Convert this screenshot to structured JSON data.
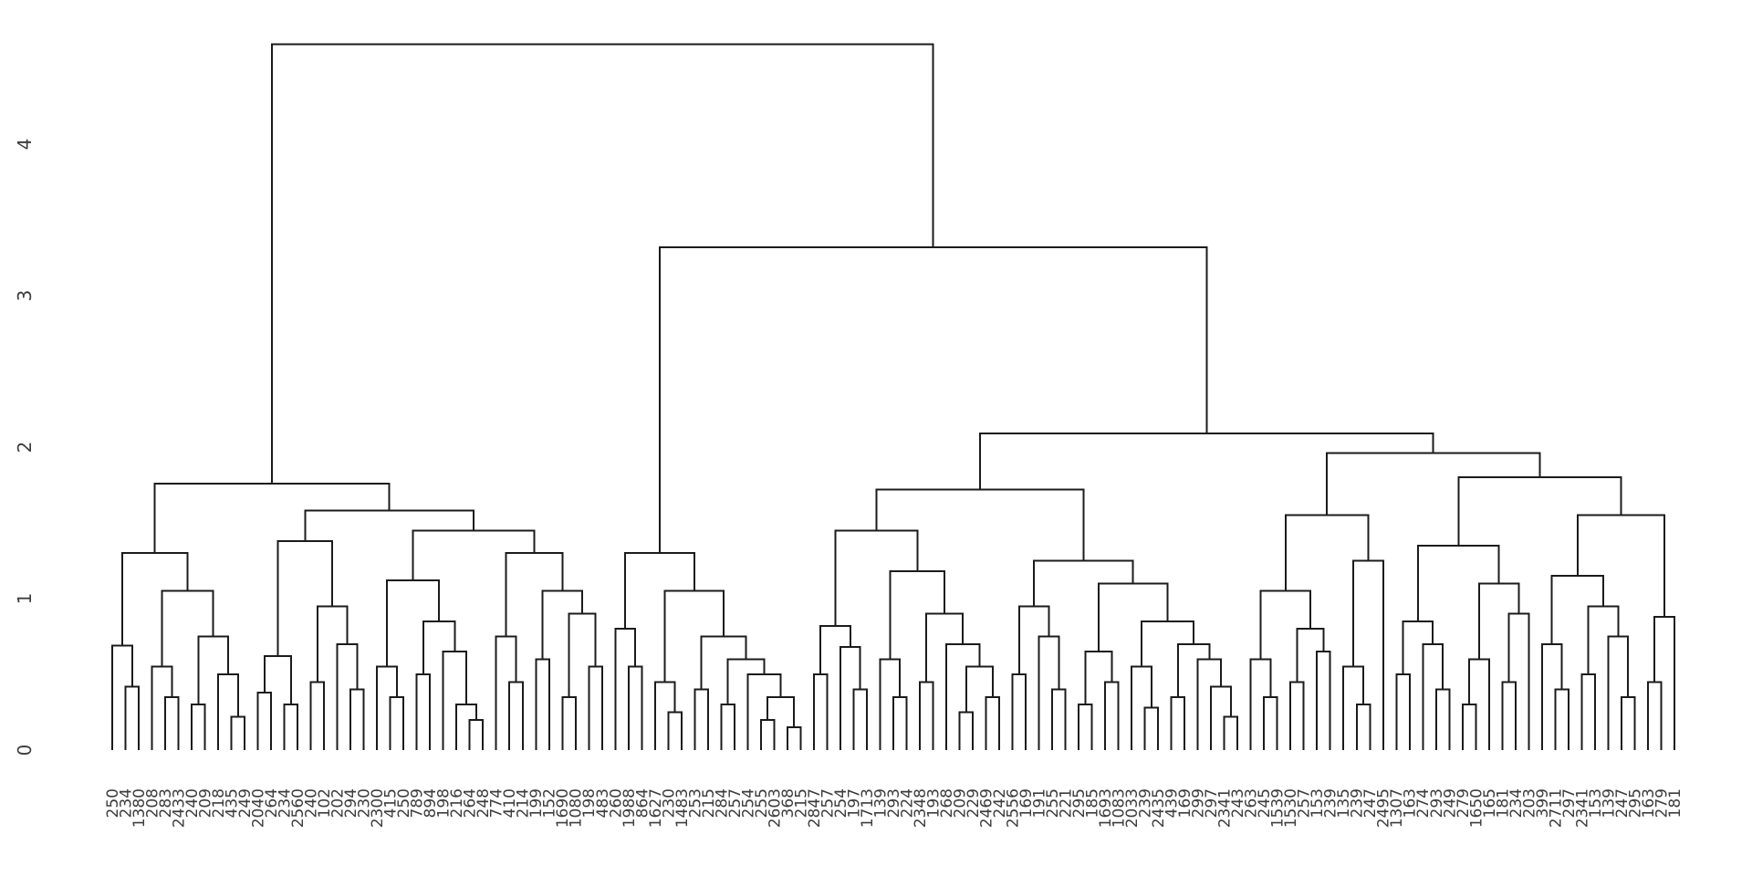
{
  "chart_data": {
    "type": "dendrogram",
    "title": "",
    "xlabel": "",
    "ylabel": "",
    "orientation": "top",
    "grid": false,
    "legend": false,
    "yticks": [
      "0",
      "1",
      "2",
      "3",
      "4"
    ],
    "ylim": [
      0,
      4.85
    ],
    "root_height": 4.66,
    "colors": {
      "line": "#1b1b1b",
      "label": "#3d3d3d",
      "background": "#ffffff"
    },
    "leaf_labels": [
      "250",
      "234",
      "1380",
      "208",
      "283",
      "2433",
      "240",
      "209",
      "218",
      "435",
      "249",
      "2040",
      "264",
      "234",
      "2560",
      "240",
      "102",
      "202",
      "294",
      "230",
      "2300",
      "415",
      "250",
      "789",
      "894",
      "198",
      "216",
      "264",
      "248",
      "774",
      "410",
      "214",
      "199",
      "152",
      "1690",
      "1080",
      "198",
      "483",
      "260",
      "1988",
      "864",
      "1627",
      "230",
      "1483",
      "253",
      "215",
      "284",
      "257",
      "254",
      "255",
      "2603",
      "368",
      "215",
      "2847",
      "257",
      "254",
      "197",
      "1713",
      "139",
      "293",
      "224",
      "2348",
      "193",
      "268",
      "209",
      "229",
      "2469",
      "242",
      "2556",
      "169",
      "191",
      "255",
      "221",
      "295",
      "185",
      "1693",
      "1083",
      "2033",
      "239",
      "2435",
      "439",
      "169",
      "299",
      "297",
      "2341",
      "243",
      "263",
      "245",
      "1539",
      "1530",
      "257",
      "153",
      "239",
      "135",
      "239",
      "247",
      "2495",
      "1307",
      "163",
      "274",
      "293",
      "249",
      "279",
      "1650",
      "165",
      "181",
      "234",
      "203",
      "399",
      "2711",
      "297",
      "2341",
      "153",
      "139",
      "247",
      "295",
      "163",
      "279",
      "181"
    ],
    "tree": [
      4.66,
      [
        1.76,
        [
          1.3,
          [
            0.69,
            0,
            [
              0.42,
              1,
              2
            ]
          ],
          [
            1.05,
            [
              0.55,
              3,
              [
                0.35,
                4,
                5
              ]
            ],
            [
              0.75,
              [
                0.3,
                6,
                7
              ],
              [
                0.5,
                8,
                [
                  0.22,
                  9,
                  10
                ]
              ]
            ]
          ]
        ],
        [
          1.58,
          [
            1.38,
            [
              0.62,
              [
                0.38,
                11,
                12
              ],
              [
                0.3,
                13,
                14
              ]
            ],
            [
              0.95,
              [
                0.45,
                15,
                16
              ],
              [
                0.7,
                17,
                [
                  0.4,
                  18,
                  19
                ]
              ]
            ]
          ],
          [
            1.45,
            [
              1.12,
              [
                0.55,
                20,
                [
                  0.35,
                  21,
                  22
                ]
              ],
              [
                0.85,
                [
                  0.5,
                  23,
                  24
                ],
                [
                  0.65,
                  25,
                  [
                    0.3,
                    26,
                    [
                      0.2,
                      27,
                      28
                    ]
                  ]
                ]
              ]
            ],
            [
              1.3,
              [
                0.75,
                29,
                [
                  0.45,
                  30,
                  31
                ]
              ],
              [
                1.05,
                [
                  0.6,
                  32,
                  33
                ],
                [
                  0.9,
                  [
                    0.35,
                    34,
                    35
                  ],
                  [
                    0.55,
                    36,
                    37
                  ]
                ]
              ]
            ]
          ]
        ]
      ],
      [
        3.32,
        [
          1.3,
          [
            0.8,
            38,
            [
              0.55,
              39,
              40
            ]
          ],
          [
            1.05,
            [
              0.45,
              41,
              [
                0.25,
                42,
                43
              ]
            ],
            [
              0.75,
              [
                0.4,
                44,
                45
              ],
              [
                0.6,
                [
                  0.3,
                  46,
                  47
                ],
                [
                  0.5,
                  48,
                  [
                    0.35,
                    [
                      0.2,
                      49,
                      50
                    ],
                    [
                      0.15,
                      51,
                      52
                    ]
                  ]
                ]
              ]
            ]
          ]
        ],
        [
          2.09,
          [
            1.72,
            [
              1.45,
              [
                0.82,
                [
                  0.5,
                  53,
                  54
                ],
                [
                  0.68,
                  55,
                  [
                    0.4,
                    56,
                    57
                  ]
                ]
              ],
              [
                1.18,
                [
                  0.6,
                  58,
                  [
                    0.35,
                    59,
                    60
                  ]
                ],
                [
                  0.9,
                  [
                    0.45,
                    61,
                    62
                  ],
                  [
                    0.7,
                    63,
                    [
                      0.55,
                      [
                        0.25,
                        64,
                        65
                      ],
                      [
                        0.35,
                        66,
                        67
                      ]
                    ]
                  ]
                ]
              ]
            ],
            [
              1.25,
              [
                0.95,
                [
                  0.5,
                  68,
                  69
                ],
                [
                  0.75,
                  70,
                  [
                    0.4,
                    71,
                    72
                  ]
                ]
              ],
              [
                1.1,
                [
                  0.65,
                  [
                    0.3,
                    73,
                    74
                  ],
                  [
                    0.45,
                    75,
                    76
                  ]
                ],
                [
                  0.85,
                  [
                    0.55,
                    77,
                    [
                      0.28,
                      78,
                      79
                    ]
                  ],
                  [
                    0.7,
                    [
                      0.35,
                      80,
                      81
                    ],
                    [
                      0.6,
                      82,
                      [
                        0.42,
                        83,
                        [
                          0.22,
                          84,
                          85
                        ]
                      ]
                    ]
                  ]
                ]
              ]
            ]
          ],
          [
            1.96,
            [
              1.55,
              [
                1.05,
                [
                  0.6,
                  86,
                  [
                    0.35,
                    87,
                    88
                  ]
                ],
                [
                  0.8,
                  [
                    0.45,
                    89,
                    90
                  ],
                  [
                    0.65,
                    91,
                    92
                  ]
                ]
              ],
              [
                1.25,
                [
                  0.55,
                  93,
                  [
                    0.3,
                    94,
                    95
                  ]
                ],
                96
              ]
            ],
            [
              1.8,
              [
                1.35,
                [
                  0.85,
                  [
                    0.5,
                    97,
                    98
                  ],
                  [
                    0.7,
                    99,
                    [
                      0.4,
                      100,
                      101
                    ]
                  ]
                ],
                [
                  1.1,
                  [
                    0.6,
                    [
                      0.3,
                      102,
                      103
                    ],
                    104
                  ],
                  [
                    0.9,
                    [
                      0.45,
                      105,
                      106
                    ],
                    107
                  ]
                ]
              ],
              [
                1.55,
                [
                  1.15,
                  [
                    0.7,
                    108,
                    [
                      0.4,
                      109,
                      110
                    ]
                  ],
                  [
                    0.95,
                    [
                      0.5,
                      111,
                      112
                    ],
                    [
                      0.75,
                      113,
                      [
                        0.35,
                        114,
                        115
                      ]
                    ]
                  ]
                ],
                [
                  0.88,
                  [
                    0.45,
                    116,
                    117
                  ],
                  118
                ]
              ]
            ]
          ]
        ]
      ]
    ]
  }
}
